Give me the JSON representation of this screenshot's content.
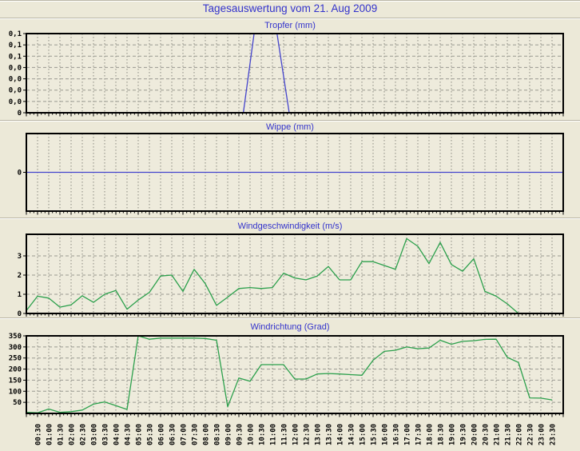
{
  "page": {
    "title": "Tagesauswertung vom 21. Aug 2009"
  },
  "colors": {
    "page_bg": "#ece9d8",
    "plot_bg": "#eeebdc",
    "title_text": "#3333cc",
    "grid_v": "#8a8a80",
    "grid_h": "#999990",
    "axis_border": "#000000",
    "blue_line": "#4444cc",
    "green_line": "#2ca04c"
  },
  "x_axis": {
    "start": "00:00",
    "interval_minutes": 30,
    "labels": [
      "00:30",
      "01:00",
      "01:30",
      "02:00",
      "02:30",
      "03:00",
      "03:30",
      "04:00",
      "04:30",
      "05:00",
      "05:30",
      "06:00",
      "06:30",
      "07:00",
      "07:30",
      "08:00",
      "08:30",
      "09:00",
      "09:30",
      "10:00",
      "10:30",
      "11:00",
      "11:30",
      "12:00",
      "12:30",
      "13:00",
      "13:30",
      "14:00",
      "14:30",
      "15:00",
      "15:30",
      "16:00",
      "16:30",
      "17:00",
      "17:30",
      "18:00",
      "18:30",
      "19:00",
      "19:30",
      "20:00",
      "20:30",
      "21:00",
      "21:30",
      "22:00",
      "22:30",
      "23:00",
      "23:30"
    ]
  },
  "chart_data": [
    {
      "type": "line",
      "id": "tropfer",
      "title": "Tropfer (mm)",
      "line_color": "#4444cc",
      "ylim": [
        0,
        0.105
      ],
      "yticks": [
        {
          "v": 0.105,
          "label": "0,1"
        },
        {
          "v": 0.09,
          "label": "0,1"
        },
        {
          "v": 0.075,
          "label": "0,1"
        },
        {
          "v": 0.06,
          "label": "0,0"
        },
        {
          "v": 0.045,
          "label": "0,0"
        },
        {
          "v": 0.03,
          "label": "0,0"
        },
        {
          "v": 0.015,
          "label": "0,0"
        },
        {
          "v": 0,
          "label": "0"
        }
      ],
      "points_hours_value": [
        [
          0,
          0
        ],
        [
          9.7,
          0
        ],
        [
          10.66,
          0.21
        ],
        [
          11.75,
          0
        ],
        [
          24,
          0
        ]
      ],
      "note": "zero all day except one rain spike ~09:40-11:45 whose peak exceeds the axis and is clipped at top"
    },
    {
      "type": "line",
      "id": "wippe",
      "title": "Wippe (mm)",
      "line_color": "#4444cc",
      "ylim": [
        -1,
        1
      ],
      "h_grid": false,
      "yticks": [
        {
          "v": 0,
          "label": "0"
        }
      ],
      "points_hours_value": [
        [
          0,
          0
        ],
        [
          24,
          0
        ]
      ],
      "note": "flat zero line all day"
    },
    {
      "type": "line",
      "id": "windgeschwindigkeit",
      "title": "Windgeschwindigkeit (m/s)",
      "line_color": "#2ca04c",
      "ylim": [
        0,
        4.125
      ],
      "yticks": [
        {
          "v": 0,
          "label": "0"
        },
        {
          "v": 1,
          "label": "1"
        },
        {
          "v": 2,
          "label": "2"
        },
        {
          "v": 3,
          "label": "3"
        }
      ],
      "values_half_hourly": [
        0.15,
        0.9,
        0.8,
        0.33,
        0.45,
        0.92,
        0.58,
        1.0,
        1.2,
        0.22,
        0.7,
        1.1,
        1.95,
        2.0,
        1.15,
        2.3,
        1.55,
        0.42,
        0.85,
        1.3,
        1.35,
        1.3,
        1.35,
        2.1,
        1.85,
        1.75,
        1.95,
        2.45,
        1.75,
        1.75,
        2.7,
        2.7,
        2.5,
        2.3,
        3.9,
        3.5,
        2.6,
        3.7,
        2.55,
        2.2,
        2.85,
        1.15,
        0.9,
        0.5,
        0,
        null,
        null,
        null
      ],
      "note": "data ends ~22:00"
    },
    {
      "type": "line",
      "id": "windrichtung",
      "title": "Windrichtung (Grad)",
      "line_color": "#2ca04c",
      "ylim": [
        0,
        350
      ],
      "yticks": [
        {
          "v": 350,
          "label": "350"
        },
        {
          "v": 300,
          "label": "300"
        },
        {
          "v": 250,
          "label": "250"
        },
        {
          "v": 200,
          "label": "200"
        },
        {
          "v": 150,
          "label": "150"
        },
        {
          "v": 100,
          "label": "100"
        },
        {
          "v": 50,
          "label": "50"
        }
      ],
      "values_half_hourly": [
        5,
        3,
        20,
        5,
        8,
        15,
        42,
        52,
        35,
        18,
        350,
        335,
        340,
        340,
        340,
        340,
        338,
        330,
        30,
        160,
        145,
        220,
        220,
        220,
        155,
        155,
        178,
        180,
        178,
        175,
        172,
        240,
        280,
        285,
        300,
        292,
        295,
        330,
        312,
        325,
        328,
        334,
        335,
        253,
        230,
        70,
        69,
        61
      ]
    }
  ]
}
